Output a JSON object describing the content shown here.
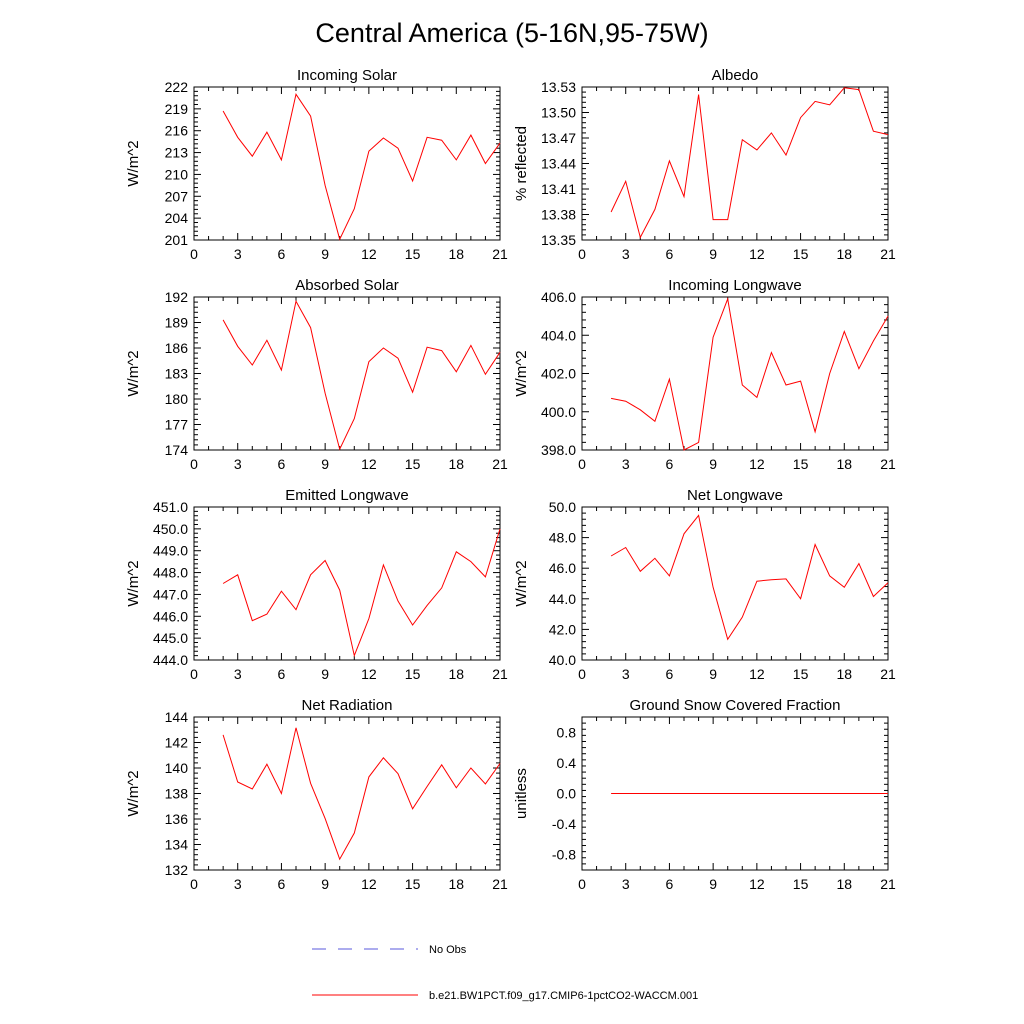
{
  "title": "Central America (5-16N,95-75W)",
  "legend": {
    "obs_label": "No Obs",
    "obs_color": "#5a5adc",
    "model_label": "b.e21.BW1PCT.f09_g17.CMIP6-1pctCO2-WACCM.001",
    "model_color": "#ff0000"
  },
  "chart_data": [
    {
      "type": "line",
      "title": "Incoming Solar",
      "ylabel": "W/m^2",
      "xlim": [
        0,
        21
      ],
      "xticks": [
        0,
        3,
        6,
        9,
        12,
        15,
        18,
        21
      ],
      "ylim": [
        201,
        222
      ],
      "yticks": [
        201,
        204,
        207,
        210,
        213,
        216,
        219,
        222
      ],
      "ytick_labels": [
        "201",
        "204",
        "207",
        "210",
        "213",
        "216",
        "219",
        "222"
      ],
      "x": [
        2,
        3,
        4,
        5,
        6,
        7,
        8,
        9,
        10,
        11,
        12,
        13,
        14,
        15,
        16,
        17,
        18,
        19,
        20,
        21
      ],
      "series": [
        {
          "values": [
            218.7,
            215.1,
            212.5,
            215.8,
            212.0,
            221.0,
            218.0,
            208.5,
            201.1,
            205.3,
            213.2,
            215.0,
            213.6,
            209.1,
            215.1,
            214.7,
            212.0,
            215.4,
            211.5,
            214.3
          ]
        }
      ]
    },
    {
      "type": "line",
      "title": "Albedo",
      "ylabel": "% reflected",
      "xlim": [
        0,
        21
      ],
      "xticks": [
        0,
        3,
        6,
        9,
        12,
        15,
        18,
        21
      ],
      "ylim": [
        13.35,
        13.53
      ],
      "yticks": [
        13.35,
        13.38,
        13.41,
        13.44,
        13.47,
        13.5,
        13.53
      ],
      "ytick_labels": [
        "13.35",
        "13.38",
        "13.41",
        "13.44",
        "13.47",
        "13.50",
        "13.53"
      ],
      "x": [
        2,
        3,
        4,
        5,
        6,
        7,
        8,
        9,
        10,
        11,
        12,
        13,
        14,
        15,
        16,
        17,
        18,
        19,
        20,
        21
      ],
      "series": [
        {
          "values": [
            13.383,
            13.419,
            13.353,
            13.386,
            13.443,
            13.401,
            13.521,
            13.374,
            13.374,
            13.468,
            13.456,
            13.476,
            13.45,
            13.494,
            13.513,
            13.509,
            13.529,
            13.527,
            13.478,
            13.474
          ]
        }
      ]
    },
    {
      "type": "line",
      "title": "Absorbed Solar",
      "ylabel": "W/m^2",
      "xlim": [
        0,
        21
      ],
      "xticks": [
        0,
        3,
        6,
        9,
        12,
        15,
        18,
        21
      ],
      "ylim": [
        174,
        192
      ],
      "yticks": [
        174,
        177,
        180,
        183,
        186,
        189,
        192
      ],
      "ytick_labels": [
        "174",
        "177",
        "180",
        "183",
        "186",
        "189",
        "192"
      ],
      "x": [
        2,
        3,
        4,
        5,
        6,
        7,
        8,
        9,
        10,
        11,
        12,
        13,
        14,
        15,
        16,
        17,
        18,
        19,
        20,
        21
      ],
      "series": [
        {
          "values": [
            189.3,
            186.2,
            184.0,
            186.9,
            183.4,
            191.5,
            188.4,
            180.7,
            174.1,
            177.7,
            184.4,
            186.0,
            184.8,
            180.8,
            186.1,
            185.7,
            183.2,
            186.3,
            182.9,
            185.5
          ]
        }
      ]
    },
    {
      "type": "line",
      "title": "Incoming Longwave",
      "ylabel": "W/m^2",
      "xlim": [
        0,
        21
      ],
      "xticks": [
        0,
        3,
        6,
        9,
        12,
        15,
        18,
        21
      ],
      "ylim": [
        398,
        406
      ],
      "yticks": [
        398,
        400,
        402,
        404,
        406
      ],
      "ytick_labels": [
        "398.0",
        "400.0",
        "402.0",
        "404.0",
        "406.0"
      ],
      "x": [
        2,
        3,
        4,
        5,
        6,
        7,
        8,
        9,
        10,
        11,
        12,
        13,
        14,
        15,
        16,
        17,
        18,
        19,
        20,
        21
      ],
      "series": [
        {
          "values": [
            400.7,
            400.55,
            400.1,
            399.5,
            401.7,
            398.0,
            398.4,
            403.9,
            405.9,
            401.4,
            400.75,
            403.1,
            401.4,
            401.6,
            398.95,
            402.0,
            404.2,
            402.25,
            403.7,
            405.0
          ]
        }
      ]
    },
    {
      "type": "line",
      "title": "Emitted Longwave",
      "ylabel": "W/m^2",
      "xlim": [
        0,
        21
      ],
      "xticks": [
        0,
        3,
        6,
        9,
        12,
        15,
        18,
        21
      ],
      "ylim": [
        444,
        451
      ],
      "yticks": [
        444,
        445,
        446,
        447,
        448,
        449,
        450,
        451
      ],
      "ytick_labels": [
        "444.0",
        "445.0",
        "446.0",
        "447.0",
        "448.0",
        "449.0",
        "450.0",
        "451.0"
      ],
      "x": [
        2,
        3,
        4,
        5,
        6,
        7,
        8,
        9,
        10,
        11,
        12,
        13,
        14,
        15,
        16,
        17,
        18,
        19,
        20,
        21
      ],
      "series": [
        {
          "values": [
            447.5,
            447.9,
            445.8,
            446.1,
            447.15,
            446.3,
            447.9,
            448.55,
            447.2,
            444.2,
            445.9,
            448.35,
            446.7,
            445.6,
            446.5,
            447.3,
            448.95,
            448.5,
            447.8,
            450.0
          ]
        }
      ]
    },
    {
      "type": "line",
      "title": "Net Longwave",
      "ylabel": "W/m^2",
      "xlim": [
        0,
        21
      ],
      "xticks": [
        0,
        3,
        6,
        9,
        12,
        15,
        18,
        21
      ],
      "ylim": [
        40,
        50
      ],
      "yticks": [
        40,
        42,
        44,
        46,
        48,
        50
      ],
      "ytick_labels": [
        "40.0",
        "42.0",
        "44.0",
        "46.0",
        "48.0",
        "50.0"
      ],
      "x": [
        2,
        3,
        4,
        5,
        6,
        7,
        8,
        9,
        10,
        11,
        12,
        13,
        14,
        15,
        16,
        17,
        18,
        19,
        20,
        21
      ],
      "series": [
        {
          "values": [
            46.8,
            47.35,
            45.8,
            46.65,
            45.5,
            48.25,
            49.45,
            44.75,
            41.35,
            42.8,
            45.15,
            45.25,
            45.3,
            44.0,
            47.55,
            45.5,
            44.75,
            46.3,
            44.15,
            45.05
          ]
        }
      ]
    },
    {
      "type": "line",
      "title": "Net Radiation",
      "ylabel": "W/m^2",
      "xlim": [
        0,
        21
      ],
      "xticks": [
        0,
        3,
        6,
        9,
        12,
        15,
        18,
        21
      ],
      "ylim": [
        132,
        144
      ],
      "yticks": [
        132,
        134,
        136,
        138,
        140,
        142,
        144
      ],
      "ytick_labels": [
        "132",
        "134",
        "136",
        "138",
        "140",
        "142",
        "144"
      ],
      "x": [
        2,
        3,
        4,
        5,
        6,
        7,
        8,
        9,
        10,
        11,
        12,
        13,
        14,
        15,
        16,
        17,
        18,
        19,
        20,
        21
      ],
      "series": [
        {
          "values": [
            142.6,
            138.9,
            138.35,
            140.3,
            138.0,
            143.15,
            138.8,
            136.05,
            132.85,
            134.9,
            139.3,
            140.8,
            139.55,
            136.8,
            138.55,
            140.25,
            138.45,
            140.0,
            138.75,
            140.35
          ]
        }
      ]
    },
    {
      "type": "line",
      "title": "Ground Snow Covered Fraction",
      "ylabel": "unitless",
      "xlim": [
        0,
        21
      ],
      "xticks": [
        0,
        3,
        6,
        9,
        12,
        15,
        18,
        21
      ],
      "ylim": [
        -1.0,
        1.0
      ],
      "yticks": [
        -0.8,
        -0.4,
        0.0,
        0.4,
        0.8
      ],
      "ytick_labels": [
        "-0.8",
        "-0.4",
        "0.0",
        "0.4",
        "0.8"
      ],
      "x": [
        2,
        21
      ],
      "series": [
        {
          "values": [
            0.0,
            0.0
          ]
        }
      ]
    }
  ]
}
